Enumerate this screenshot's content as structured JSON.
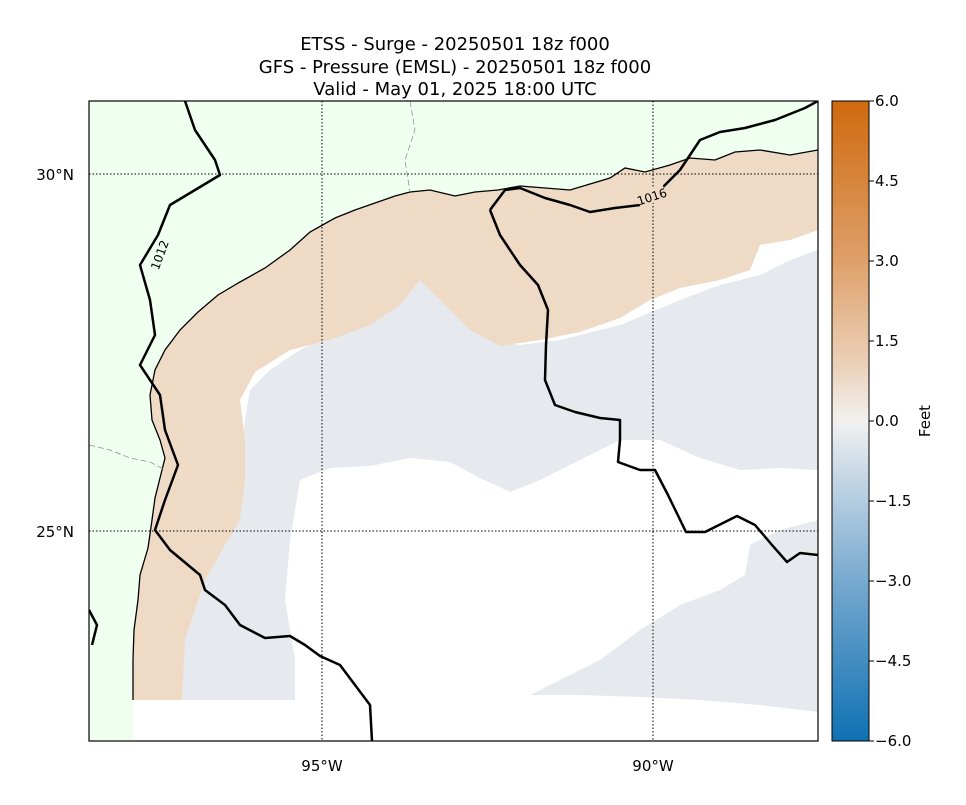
{
  "title": {
    "line1": "ETSS - Surge - 20250501 18z f000",
    "line2": "GFS -  Pressure (EMSL) - 20250501 18z f000",
    "line3": "Valid - May 01, 2025 18:00 UTC"
  },
  "map": {
    "lat_ticks": [
      {
        "value": 30,
        "label": "30°N"
      },
      {
        "value": 25,
        "label": "25°N"
      }
    ],
    "lon_ticks": [
      {
        "value": -95,
        "label": "95°W"
      },
      {
        "value": -90,
        "label": "90°W"
      }
    ],
    "extent": {
      "lon_min": -98.5,
      "lon_max": -87.5,
      "lat_min": 22.0,
      "lat_max": 31.0
    },
    "gridlines": true,
    "colors": {
      "land": "#effff0",
      "surge_positive": "#efdac6",
      "surge_near_zero": "#e6eaee",
      "no_data": "#ffffff",
      "coastline": "#000000",
      "isobar": "#000000"
    },
    "isobar_labels": [
      {
        "text": "1012"
      },
      {
        "text": "1016"
      }
    ]
  },
  "colorbar": {
    "label": "Feet",
    "range": [
      -6.0,
      6.0
    ],
    "ticks": [
      {
        "value": 6.0,
        "label": "6.0"
      },
      {
        "value": 4.5,
        "label": "4.5"
      },
      {
        "value": 3.0,
        "label": "3.0"
      },
      {
        "value": 1.5,
        "label": "1.5"
      },
      {
        "value": 0.0,
        "label": "0.0"
      },
      {
        "value": -1.5,
        "label": "−1.5"
      },
      {
        "value": -3.0,
        "label": "−3.0"
      },
      {
        "value": -4.5,
        "label": "−4.5"
      },
      {
        "value": -6.0,
        "label": "−6.0"
      }
    ],
    "colors": {
      "top": "#cf6a0e",
      "mid": "#f2f1f0",
      "bottom": "#0f71b3"
    }
  }
}
